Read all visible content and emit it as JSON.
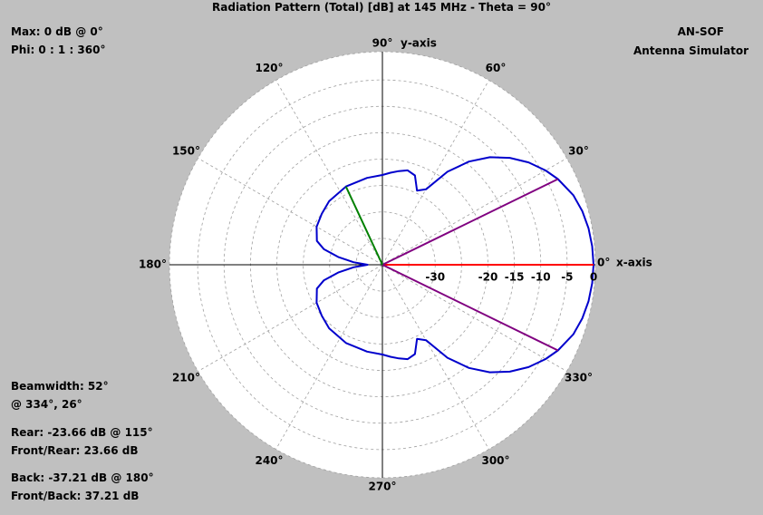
{
  "chart_data": {
    "type": "polar",
    "title": "Radiation Pattern (Total) [dB] at 145 MHz - Theta = 90°",
    "info": {
      "max": "Max: 0 dB @ 0°",
      "phi": "Phi: 0 : 1 : 360°"
    },
    "branding": {
      "name": "AN-SOF",
      "subtitle": "Antenna Simulator"
    },
    "axis_labels": {
      "x": "x-axis",
      "y": "y-axis"
    },
    "angle_ticks": [
      {
        "deg": 0,
        "label": "0°"
      },
      {
        "deg": 30,
        "label": "30°"
      },
      {
        "deg": 60,
        "label": "60°"
      },
      {
        "deg": 90,
        "label": "90°"
      },
      {
        "deg": 120,
        "label": "120°"
      },
      {
        "deg": 150,
        "label": "150°"
      },
      {
        "deg": 180,
        "label": "180°"
      },
      {
        "deg": 210,
        "label": "210°"
      },
      {
        "deg": 240,
        "label": "240°"
      },
      {
        "deg": 270,
        "label": "270°"
      },
      {
        "deg": 300,
        "label": "300°"
      },
      {
        "deg": 330,
        "label": "330°"
      }
    ],
    "radial_ticks": [
      {
        "db": -30,
        "label": "-30"
      },
      {
        "db": -20,
        "label": "-20"
      },
      {
        "db": -15,
        "label": "-15"
      },
      {
        "db": -10,
        "label": "-10"
      },
      {
        "db": -5,
        "label": "-5"
      },
      {
        "db": 0,
        "label": "0"
      }
    ],
    "pattern_db": [
      {
        "phi": 0,
        "db": 0
      },
      {
        "phi": 5,
        "db": -0.1
      },
      {
        "phi": 10,
        "db": -0.35
      },
      {
        "phi": 15,
        "db": -0.8
      },
      {
        "phi": 20,
        "db": -1.5
      },
      {
        "phi": 26,
        "db": -3
      },
      {
        "phi": 30,
        "db": -4.3
      },
      {
        "phi": 35,
        "db": -6.2
      },
      {
        "phi": 40,
        "db": -8.5
      },
      {
        "phi": 45,
        "db": -11.2
      },
      {
        "phi": 50,
        "db": -14.5
      },
      {
        "phi": 55,
        "db": -18.5
      },
      {
        "phi": 60,
        "db": -23.5
      },
      {
        "phi": 65,
        "db": -24.5
      },
      {
        "phi": 70,
        "db": -22
      },
      {
        "phi": 75,
        "db": -21.5
      },
      {
        "phi": 80,
        "db": -22
      },
      {
        "phi": 85,
        "db": -22.5
      },
      {
        "phi": 90,
        "db": -23
      },
      {
        "phi": 100,
        "db": -23.3
      },
      {
        "phi": 115,
        "db": -23.66
      },
      {
        "phi": 130,
        "db": -24.3
      },
      {
        "phi": 140,
        "db": -25
      },
      {
        "phi": 150,
        "db": -25.6
      },
      {
        "phi": 160,
        "db": -26.8
      },
      {
        "phi": 165,
        "db": -28.5
      },
      {
        "phi": 170,
        "db": -31.5
      },
      {
        "phi": 175,
        "db": -34.5
      },
      {
        "phi": 180,
        "db": -37.21
      },
      {
        "phi": 185,
        "db": -34.5
      },
      {
        "phi": 190,
        "db": -31.5
      },
      {
        "phi": 195,
        "db": -28.5
      },
      {
        "phi": 200,
        "db": -26.8
      },
      {
        "phi": 210,
        "db": -25.6
      },
      {
        "phi": 220,
        "db": -25
      },
      {
        "phi": 230,
        "db": -24.3
      },
      {
        "phi": 245,
        "db": -23.66
      },
      {
        "phi": 260,
        "db": -23.3
      },
      {
        "phi": 270,
        "db": -23
      },
      {
        "phi": 275,
        "db": -22.5
      },
      {
        "phi": 280,
        "db": -22
      },
      {
        "phi": 285,
        "db": -21.5
      },
      {
        "phi": 290,
        "db": -22
      },
      {
        "phi": 295,
        "db": -24.5
      },
      {
        "phi": 300,
        "db": -23.5
      },
      {
        "phi": 305,
        "db": -18.5
      },
      {
        "phi": 310,
        "db": -14.5
      },
      {
        "phi": 315,
        "db": -11.2
      },
      {
        "phi": 320,
        "db": -8.5
      },
      {
        "phi": 325,
        "db": -6.2
      },
      {
        "phi": 330,
        "db": -4.3
      },
      {
        "phi": 334,
        "db": -3
      },
      {
        "phi": 340,
        "db": -1.5
      },
      {
        "phi": 345,
        "db": -0.8
      },
      {
        "phi": 350,
        "db": -0.35
      },
      {
        "phi": 355,
        "db": -0.1
      },
      {
        "phi": 360,
        "db": 0
      }
    ],
    "markers": [
      {
        "name": "max-direction",
        "phi": 0,
        "db": 0,
        "color": "#ff0000"
      },
      {
        "name": "beamwidth-edge-upper",
        "phi": 26,
        "db": -3,
        "color": "#800080"
      },
      {
        "name": "beamwidth-edge-lower",
        "phi": 334,
        "db": -3,
        "color": "#800080"
      },
      {
        "name": "rear-direction",
        "phi": 115,
        "db": -23.66,
        "color": "#008000"
      }
    ],
    "stats": {
      "beamwidth": "Beamwidth: 52°",
      "beamwidth_at": "@ 334°, 26°",
      "rear": "Rear: -23.66 dB @ 115°",
      "front_rear": "Front/Rear: 23.66 dB",
      "back": "Back: -37.21 dB @ 180°",
      "front_back": "Front/Back: 37.21 dB"
    },
    "colors": {
      "background": "#c0c0c0",
      "plot_area": "#ffffff",
      "pattern": "#0000cc",
      "grid": "#a0a0a0"
    }
  }
}
